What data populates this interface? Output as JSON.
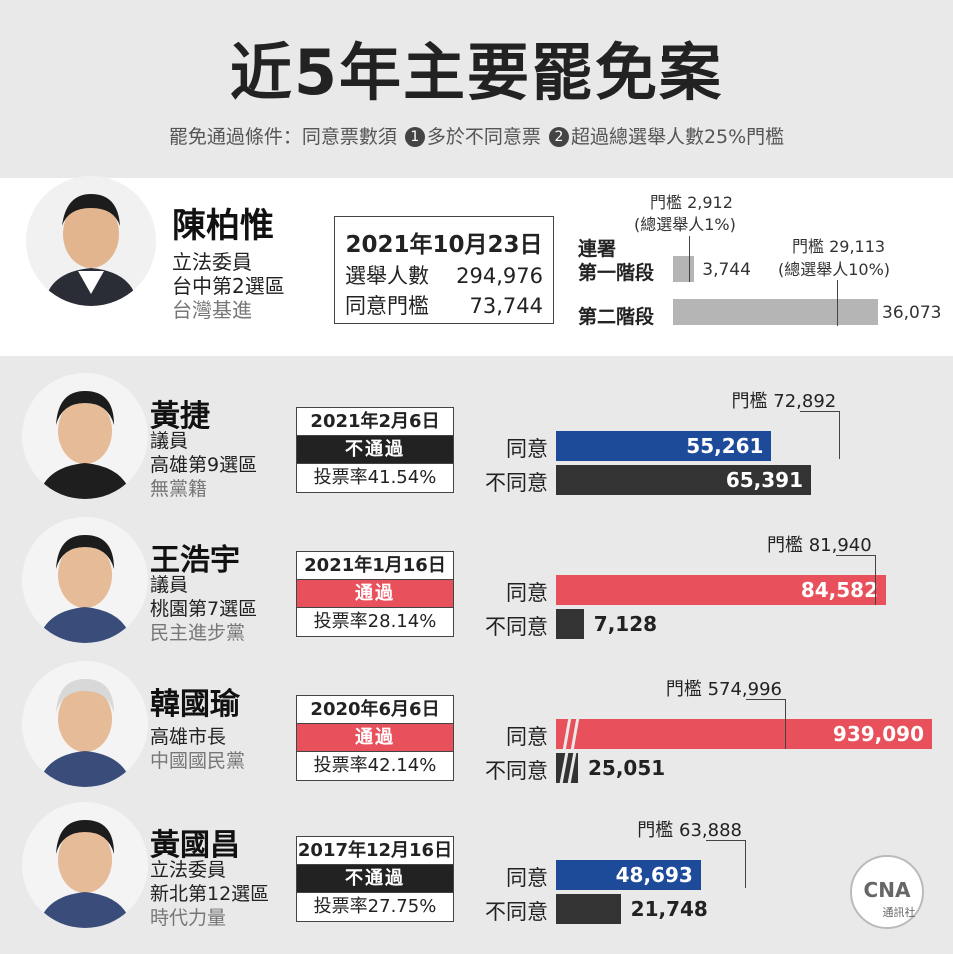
{
  "header": {
    "title": "近5年主要罷免案",
    "subtitle_prefix": "罷免通過條件：同意票數須",
    "cond1_num": "1",
    "cond1": "多於不同意票",
    "cond2_num": "2",
    "cond2": "超過總選舉人數25%門檻"
  },
  "colors": {
    "agree_pass": "#e8505b",
    "agree_fail": "#1e4a9a",
    "disagree": "#333333",
    "petition": "#b5b5b5",
    "fail_badge": "#222222",
    "pass_badge": "#e8505b"
  },
  "chart_data": {
    "type": "bar",
    "featured": {
      "name": "陳柏惟",
      "title": "立法委員",
      "district": "台中第2選區",
      "party": "台灣基進",
      "date": "2021年10月23日",
      "electorate_label": "選舉人數",
      "electorate": "294,976",
      "threshold_label": "同意門檻",
      "threshold": "73,744",
      "petition_label_a": "連署",
      "stage1_label": "第一階段",
      "stage1_value": 3744,
      "stage1_value_text": "3,744",
      "stage1_threshold_text": "門檻 2,912",
      "stage1_threshold_note": "(總選舉人1%)",
      "stage1_threshold": 2912,
      "stage2_label": "第二階段",
      "stage2_value": 36073,
      "stage2_value_text": "36,073",
      "stage2_threshold_text": "門檻 29,113",
      "stage2_threshold_note": "(總選舉人10%)",
      "stage2_threshold": 29113
    },
    "cases": [
      {
        "name": "黃捷",
        "role": "議員",
        "district": "高雄第9選區",
        "party": "無黨籍",
        "date": "2021年2月6日",
        "status": "不通過",
        "passed": false,
        "turnout": "投票率41.54%",
        "agree_label": "同意",
        "disagree_label": "不同意",
        "agree": 55261,
        "agree_text": "55,261",
        "disagree": 65391,
        "disagree_text": "65,391",
        "threshold": 72892,
        "threshold_text": "門檻 72,892"
      },
      {
        "name": "王浩宇",
        "role": "議員",
        "district": "桃園第7選區",
        "party": "民主進步黨",
        "date": "2021年1月16日",
        "status": "通過",
        "passed": true,
        "turnout": "投票率28.14%",
        "agree_label": "同意",
        "disagree_label": "不同意",
        "agree": 84582,
        "agree_text": "84,582",
        "disagree": 7128,
        "disagree_text": "7,128",
        "threshold": 81940,
        "threshold_text": "門檻 81,940"
      },
      {
        "name": "韓國瑜",
        "role": "高雄市長",
        "district": "",
        "party": "中國國民黨",
        "date": "2020年6月6日",
        "status": "通過",
        "passed": true,
        "turnout": "投票率42.14%",
        "agree_label": "同意",
        "disagree_label": "不同意",
        "agree": 939090,
        "agree_text": "939,090",
        "disagree": 25051,
        "disagree_text": "25,051",
        "threshold": 574996,
        "threshold_text": "門檻 574,996"
      },
      {
        "name": "黃國昌",
        "role": "立法委員",
        "district": "新北第12選區",
        "party": "時代力量",
        "date": "2017年12月16日",
        "status": "不通過",
        "passed": false,
        "turnout": "投票率27.75%",
        "agree_label": "同意",
        "disagree_label": "不同意",
        "agree": 48693,
        "agree_text": "48,693",
        "disagree": 21748,
        "disagree_text": "21,748",
        "threshold": 63888,
        "threshold_text": "門檻 63,888"
      }
    ]
  },
  "logo": {
    "text": "CNA",
    "sub": "通訊社"
  }
}
